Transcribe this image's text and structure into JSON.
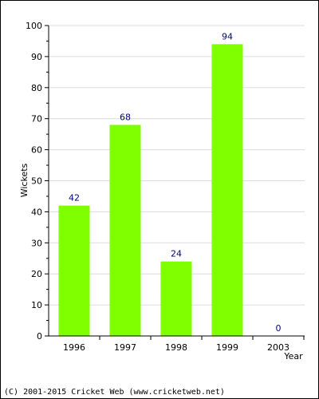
{
  "chart_data": {
    "type": "bar",
    "categories": [
      "1996",
      "1997",
      "1998",
      "1999",
      "2003"
    ],
    "values": [
      42,
      68,
      24,
      94,
      0
    ],
    "xlabel": "Year",
    "ylabel": "Wickets",
    "ylim": [
      0,
      100
    ],
    "yticks": [
      0,
      10,
      20,
      30,
      40,
      50,
      60,
      70,
      80,
      90,
      100
    ],
    "grid": true,
    "legend": "none",
    "bar_color": "#80ff00",
    "label_color": "#000080"
  },
  "footer": "(C) 2001-2015 Cricket Web (www.cricketweb.net)"
}
